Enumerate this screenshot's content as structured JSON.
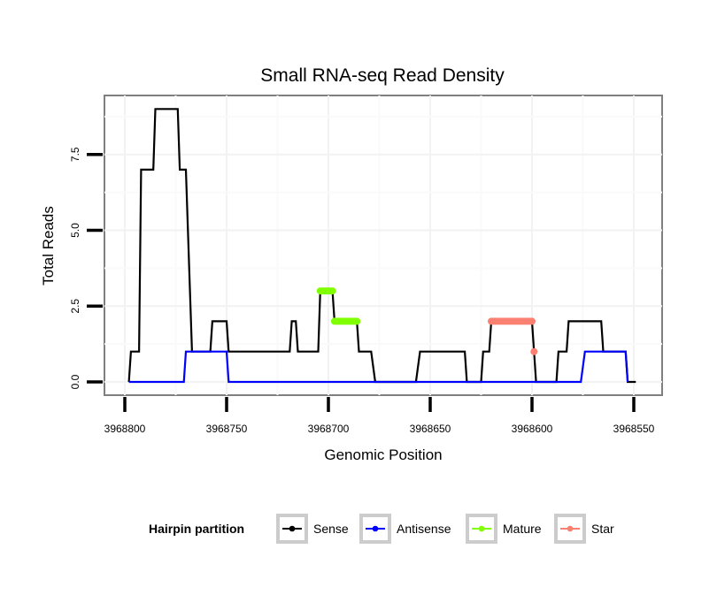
{
  "chart_data": {
    "type": "line",
    "title": "Small RNA-seq Read Density",
    "xlabel": "Genomic Position",
    "ylabel": "Total Reads",
    "x_reversed": true,
    "xlim": [
      3968809,
      3968535
    ],
    "ylim": [
      -0.45,
      9.45
    ],
    "x_ticks": [
      3968800,
      3968750,
      3968700,
      3968650,
      3968600,
      3968550
    ],
    "x_tick_labels": [
      "3968800",
      "3968750",
      "3968700",
      "3968650",
      "3968600",
      "3968550"
    ],
    "y_ticks": [
      0,
      2.5,
      5,
      7.5
    ],
    "y_tick_labels": [
      "0.0",
      "2.5",
      "5.0",
      "7.5"
    ],
    "grid": true,
    "legend": {
      "title": "Hairpin partition",
      "position": "bottom",
      "entries": [
        {
          "name": "Sense",
          "color": "#000000"
        },
        {
          "name": "Antisense",
          "color": "#0000ff"
        },
        {
          "name": "Mature",
          "color": "#7fff00"
        },
        {
          "name": "Star",
          "color": "#fa8072"
        }
      ]
    },
    "series": [
      {
        "name": "Sense",
        "color": "#000000",
        "style": "line",
        "points": [
          [
            3968798,
            0
          ],
          [
            3968797,
            1
          ],
          [
            3968793,
            1
          ],
          [
            3968792,
            7
          ],
          [
            3968786,
            7
          ],
          [
            3968785,
            9
          ],
          [
            3968774,
            9
          ],
          [
            3968773,
            7
          ],
          [
            3968770,
            7
          ],
          [
            3968767,
            1
          ],
          [
            3968758,
            1
          ],
          [
            3968757,
            2
          ],
          [
            3968750,
            2
          ],
          [
            3968749,
            1
          ],
          [
            3968719,
            1
          ],
          [
            3968718,
            2
          ],
          [
            3968716,
            2
          ],
          [
            3968715,
            1
          ],
          [
            3968705,
            1
          ],
          [
            3968704,
            3
          ],
          [
            3968698,
            3
          ],
          [
            3968697,
            2
          ],
          [
            3968686,
            2
          ],
          [
            3968685,
            1
          ],
          [
            3968679,
            1
          ],
          [
            3968677,
            0
          ],
          [
            3968657,
            0
          ],
          [
            3968655,
            1
          ],
          [
            3968633,
            1
          ],
          [
            3968632,
            0
          ],
          [
            3968625,
            0
          ],
          [
            3968624,
            1
          ],
          [
            3968621,
            1
          ],
          [
            3968620,
            2
          ],
          [
            3968600,
            2
          ],
          [
            3968598,
            0
          ],
          [
            3968588,
            0
          ],
          [
            3968587,
            1
          ],
          [
            3968583,
            1
          ],
          [
            3968582,
            2
          ],
          [
            3968566,
            2
          ],
          [
            3968565,
            1
          ],
          [
            3968554,
            1
          ],
          [
            3968553,
            0
          ],
          [
            3968549,
            0
          ]
        ]
      },
      {
        "name": "Antisense",
        "color": "#0000ff",
        "style": "line",
        "points": [
          [
            3968798,
            0
          ],
          [
            3968771,
            0
          ],
          [
            3968770,
            1
          ],
          [
            3968750,
            1
          ],
          [
            3968749,
            0
          ],
          [
            3968576,
            0
          ],
          [
            3968574,
            1
          ],
          [
            3968554,
            1
          ],
          [
            3968553,
            0
          ]
        ]
      },
      {
        "name": "Mature",
        "color": "#7fff00",
        "style": "points",
        "points": [
          [
            3968704,
            3
          ],
          [
            3968703,
            3
          ],
          [
            3968702,
            3
          ],
          [
            3968701,
            3
          ],
          [
            3968700,
            3
          ],
          [
            3968699,
            3
          ],
          [
            3968698,
            3
          ],
          [
            3968697,
            2
          ],
          [
            3968696,
            2
          ],
          [
            3968695,
            2
          ],
          [
            3968694,
            2
          ],
          [
            3968693,
            2
          ],
          [
            3968692,
            2
          ],
          [
            3968691,
            2
          ],
          [
            3968690,
            2
          ],
          [
            3968689,
            2
          ],
          [
            3968688,
            2
          ],
          [
            3968687,
            2
          ],
          [
            3968686,
            2
          ]
        ]
      },
      {
        "name": "Star",
        "color": "#fa8072",
        "style": "points",
        "points": [
          [
            3968620,
            2
          ],
          [
            3968619,
            2
          ],
          [
            3968618,
            2
          ],
          [
            3968617,
            2
          ],
          [
            3968616,
            2
          ],
          [
            3968615,
            2
          ],
          [
            3968614,
            2
          ],
          [
            3968613,
            2
          ],
          [
            3968612,
            2
          ],
          [
            3968611,
            2
          ],
          [
            3968610,
            2
          ],
          [
            3968609,
            2
          ],
          [
            3968608,
            2
          ],
          [
            3968607,
            2
          ],
          [
            3968606,
            2
          ],
          [
            3968605,
            2
          ],
          [
            3968604,
            2
          ],
          [
            3968603,
            2
          ],
          [
            3968602,
            2
          ],
          [
            3968601,
            2
          ],
          [
            3968600,
            2
          ],
          [
            3968599,
            1
          ]
        ]
      }
    ]
  }
}
